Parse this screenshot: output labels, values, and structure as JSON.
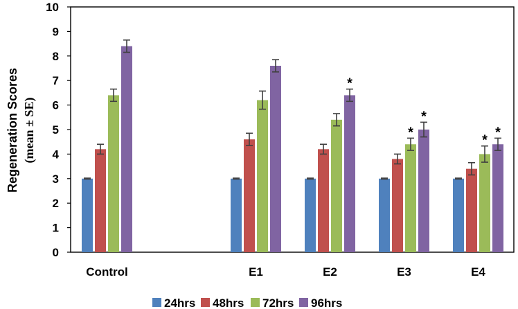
{
  "chart_data": {
    "type": "bar",
    "title": "",
    "xlabel": "",
    "ylabel_line1": "Regeneration Scores",
    "ylabel_line2": "(mean ± SE)",
    "ylim": [
      0,
      10
    ],
    "yticks": [
      "0",
      "1",
      "2",
      "3",
      "4",
      "5",
      "6",
      "7",
      "8",
      "9",
      "10"
    ],
    "categories": [
      "Control",
      "E1",
      "E2",
      "E3",
      "E4"
    ],
    "series": [
      {
        "name": "24hrs",
        "color": "#4F81BD",
        "values": [
          3.0,
          3.0,
          3.0,
          3.0,
          3.0
        ],
        "errors": [
          0.02,
          0.02,
          0.02,
          0.02,
          0.02
        ],
        "significant": [
          false,
          false,
          false,
          false,
          false
        ]
      },
      {
        "name": "48hrs",
        "color": "#C0504D",
        "values": [
          4.2,
          4.6,
          4.2,
          3.8,
          3.4
        ],
        "errors": [
          0.2,
          0.25,
          0.2,
          0.2,
          0.25
        ],
        "significant": [
          false,
          false,
          false,
          false,
          false
        ]
      },
      {
        "name": "72hrs",
        "color": "#9BBB59",
        "values": [
          6.4,
          6.2,
          5.4,
          4.4,
          4.0
        ],
        "errors": [
          0.25,
          0.37,
          0.25,
          0.25,
          0.33
        ],
        "significant": [
          false,
          false,
          false,
          true,
          true
        ]
      },
      {
        "name": "96hrs",
        "color": "#8064A2",
        "values": [
          8.4,
          7.6,
          6.4,
          5.0,
          4.4
        ],
        "errors": [
          0.25,
          0.25,
          0.25,
          0.3,
          0.25
        ],
        "significant": [
          false,
          false,
          true,
          true,
          true
        ]
      }
    ],
    "significance_marker": "*",
    "legend_position": "bottom",
    "grid": false
  }
}
